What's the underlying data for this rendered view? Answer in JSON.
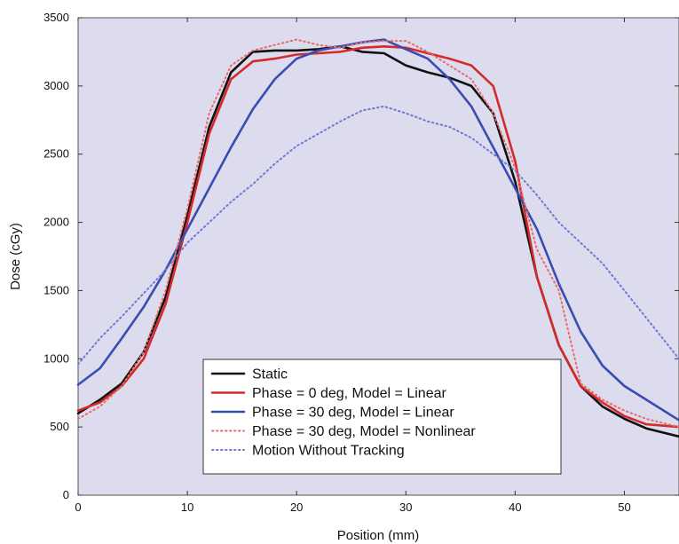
{
  "chart_data": {
    "type": "line",
    "title": "",
    "xlabel": "Position (mm)",
    "ylabel": "Dose (cGy)",
    "xlim": [
      0,
      55
    ],
    "ylim": [
      0,
      3500
    ],
    "xticks": [
      0,
      10,
      20,
      30,
      40,
      50
    ],
    "yticks": [
      0,
      500,
      1000,
      1500,
      2000,
      2500,
      3000,
      3500
    ],
    "grid": false,
    "legend_position": "bottom-center",
    "plot_background": "#dcdcee",
    "series": [
      {
        "name": "Static",
        "color": "#111111",
        "style": "solid",
        "x": [
          0,
          2,
          4,
          6,
          8,
          10,
          12,
          14,
          16,
          18,
          20,
          22,
          24,
          26,
          28,
          30,
          32,
          34,
          36,
          38,
          40,
          42,
          44,
          46,
          48,
          50,
          52,
          55
        ],
        "y": [
          600,
          700,
          820,
          1050,
          1450,
          2050,
          2700,
          3100,
          3250,
          3260,
          3260,
          3270,
          3290,
          3250,
          3240,
          3150,
          3100,
          3060,
          3000,
          2800,
          2300,
          1600,
          1100,
          800,
          650,
          560,
          490,
          430
        ]
      },
      {
        "name": "Phase = 0 deg, Model = Linear",
        "color": "#d42a2a",
        "style": "solid",
        "x": [
          0,
          2,
          4,
          6,
          8,
          10,
          12,
          14,
          16,
          18,
          20,
          22,
          24,
          26,
          28,
          30,
          32,
          34,
          36,
          38,
          40,
          42,
          44,
          46,
          48,
          50,
          52,
          55
        ],
        "y": [
          620,
          680,
          800,
          1000,
          1400,
          2000,
          2650,
          3050,
          3180,
          3200,
          3230,
          3240,
          3250,
          3280,
          3290,
          3280,
          3240,
          3200,
          3150,
          3000,
          2450,
          1600,
          1100,
          800,
          680,
          580,
          520,
          500
        ]
      },
      {
        "name": "Phase = 30 deg, Model = Linear",
        "color": "#3a4cb0",
        "style": "solid",
        "x": [
          0,
          2,
          4,
          6,
          8,
          10,
          12,
          14,
          16,
          18,
          20,
          22,
          24,
          26,
          28,
          30,
          32,
          34,
          36,
          38,
          40,
          42,
          44,
          46,
          48,
          50,
          52,
          55
        ],
        "y": [
          810,
          930,
          1150,
          1380,
          1650,
          1950,
          2250,
          2550,
          2830,
          3050,
          3200,
          3260,
          3290,
          3320,
          3340,
          3270,
          3200,
          3050,
          2850,
          2550,
          2250,
          1950,
          1550,
          1200,
          950,
          800,
          700,
          550
        ]
      },
      {
        "name": "Phase = 30 deg, Model = Nonlinear",
        "color": "#e86b6b",
        "style": "dotted",
        "x": [
          0,
          2,
          4,
          6,
          8,
          10,
          12,
          14,
          16,
          18,
          20,
          22,
          24,
          26,
          28,
          30,
          32,
          34,
          36,
          38,
          40,
          42,
          44,
          46,
          48,
          50,
          52,
          55
        ],
        "y": [
          560,
          650,
          800,
          1050,
          1500,
          2100,
          2800,
          3150,
          3260,
          3300,
          3340,
          3300,
          3280,
          3320,
          3330,
          3330,
          3250,
          3150,
          3050,
          2800,
          2400,
          1800,
          1500,
          820,
          700,
          620,
          560,
          500
        ]
      },
      {
        "name": "Motion Without Tracking",
        "color": "#6d7ad0",
        "style": "dotted",
        "x": [
          0,
          2,
          4,
          6,
          8,
          10,
          12,
          14,
          16,
          18,
          20,
          22,
          24,
          26,
          28,
          30,
          32,
          34,
          36,
          38,
          40,
          42,
          44,
          46,
          48,
          50,
          52,
          55
        ],
        "y": [
          960,
          1150,
          1310,
          1480,
          1650,
          1850,
          2000,
          2150,
          2280,
          2430,
          2560,
          2650,
          2740,
          2820,
          2850,
          2800,
          2740,
          2700,
          2620,
          2500,
          2380,
          2200,
          2000,
          1850,
          1700,
          1500,
          1300,
          1000
        ]
      }
    ]
  }
}
